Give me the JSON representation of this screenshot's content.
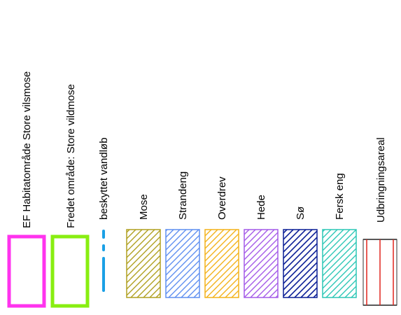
{
  "legend": {
    "items": [
      {
        "label": "EF Habitatområde Store vilsmose",
        "symbol": "outline-box",
        "color": "#ff33ee"
      },
      {
        "label": "Fredet område: Store vildmose",
        "symbol": "outline-box",
        "color": "#88ee11"
      },
      {
        "label": "beskyttet vandløb",
        "symbol": "dashed-line",
        "color": "#1aa0e6"
      },
      {
        "label": "Mose",
        "symbol": "hatched-box",
        "color": "#b0a020"
      },
      {
        "label": "Strandeng",
        "symbol": "hatched-box",
        "color": "#5f8ff0"
      },
      {
        "label": "Overdrev",
        "symbol": "hatched-box",
        "color": "#f3b21a"
      },
      {
        "label": "Hede",
        "symbol": "hatched-box",
        "color": "#a45ae8"
      },
      {
        "label": "Sø",
        "symbol": "hatched-box",
        "color": "#0a1e96"
      },
      {
        "label": "Fersk eng",
        "symbol": "hatched-box",
        "color": "#2cc7b6"
      },
      {
        "label": "Udbringningsareal",
        "symbol": "striped-box",
        "color": "#e0241c"
      }
    ]
  }
}
